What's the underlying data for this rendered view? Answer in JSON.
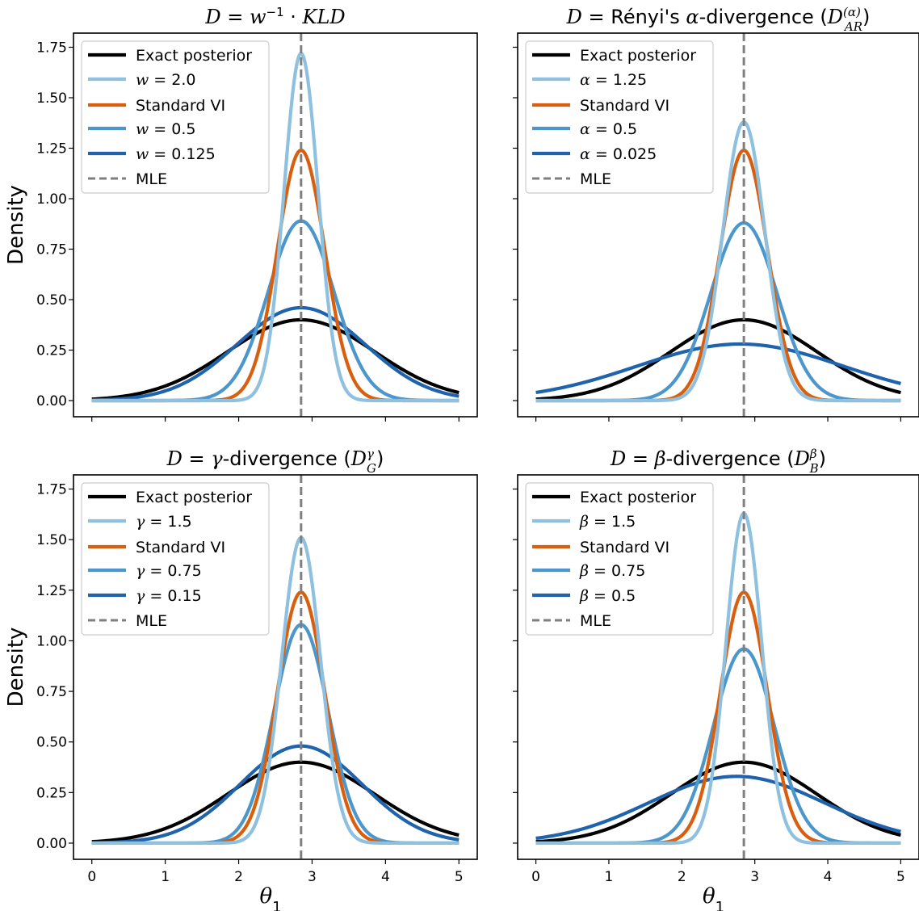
{
  "figure": {
    "ylabel": "Density",
    "xlabel_symbol": "θ",
    "xlabel_subscript": "1"
  },
  "colors": {
    "exact": "#000000",
    "standard_vi": "#d95f0e",
    "param_high": "#8ec1e0",
    "param_mid": "#4b97cc",
    "param_low": "#1f63ad",
    "mle": "#7f7f7f",
    "frame": "#000000"
  },
  "chart_data": [
    {
      "type": "line",
      "panel": "top-left",
      "title_parts": [
        {
          "t": "D",
          "it": true
        },
        {
          "t": " = "
        },
        {
          "t": "w",
          "it": true
        },
        {
          "t": "−1",
          "sup": true
        },
        {
          "t": " · "
        },
        {
          "t": "KLD",
          "it": true
        }
      ],
      "xlim": [
        -0.25,
        5.25
      ],
      "ylim": [
        -0.08,
        1.82
      ],
      "xticks": [
        0,
        1,
        2,
        3,
        4,
        5
      ],
      "show_xticklabels": false,
      "yticks": [
        "0.00",
        "0.25",
        "0.50",
        "0.75",
        "1.00",
        "1.25",
        "1.50",
        "1.75"
      ],
      "show_yticklabels": true,
      "show_ylabel": true,
      "show_xlabel": false,
      "grid": false,
      "legend_position": "upper-left",
      "mle": 2.85,
      "series": [
        {
          "name": "Exact posterior",
          "color_key": "exact",
          "peak": 0.4,
          "mean": 2.85,
          "sd": 1.0,
          "legend_parts": [
            {
              "t": "Exact posterior"
            }
          ]
        },
        {
          "name": "w = 2.0",
          "color_key": "param_high",
          "peak": 1.72,
          "mean": 2.85,
          "sd": 0.232,
          "legend_parts": [
            {
              "t": "w",
              "it": true
            },
            {
              "t": " = 2.0"
            }
          ]
        },
        {
          "name": "Standard VI",
          "color_key": "standard_vi",
          "peak": 1.24,
          "mean": 2.85,
          "sd": 0.322,
          "legend_parts": [
            {
              "t": "Standard VI"
            }
          ]
        },
        {
          "name": "w = 0.5",
          "color_key": "param_mid",
          "peak": 0.89,
          "mean": 2.85,
          "sd": 0.448,
          "legend_parts": [
            {
              "t": "w",
              "it": true
            },
            {
              "t": " = 0.5"
            }
          ]
        },
        {
          "name": "w = 0.125",
          "color_key": "param_low",
          "peak": 0.46,
          "mean": 2.85,
          "sd": 0.87,
          "legend_parts": [
            {
              "t": "w",
              "it": true
            },
            {
              "t": " = 0.125"
            }
          ]
        }
      ],
      "mle_label": "MLE"
    },
    {
      "type": "line",
      "panel": "top-right",
      "title_parts": [
        {
          "t": "D",
          "it": true
        },
        {
          "t": " = Rényi's "
        },
        {
          "t": "α",
          "it": true
        },
        {
          "t": "-divergence ("
        },
        {
          "t": "D",
          "it": true
        },
        {
          "t": "(α)",
          "sup": true,
          "it": true
        },
        {
          "t": "AR",
          "sub": true,
          "it": true,
          "back": 20
        },
        {
          "t": ")"
        }
      ],
      "xlim": [
        -0.25,
        5.25
      ],
      "ylim": [
        -0.08,
        1.82
      ],
      "xticks": [
        0,
        1,
        2,
        3,
        4,
        5
      ],
      "show_xticklabels": false,
      "yticks": [
        "0.00",
        "0.25",
        "0.50",
        "0.75",
        "1.00",
        "1.25",
        "1.50",
        "1.75"
      ],
      "show_yticklabels": false,
      "show_ylabel": false,
      "show_xlabel": false,
      "grid": false,
      "legend_position": "upper-left",
      "mle": 2.85,
      "series": [
        {
          "name": "Exact posterior",
          "color_key": "exact",
          "peak": 0.4,
          "mean": 2.85,
          "sd": 1.0,
          "legend_parts": [
            {
              "t": "Exact posterior"
            }
          ]
        },
        {
          "name": "α = 1.25",
          "color_key": "param_high",
          "peak": 1.38,
          "mean": 2.85,
          "sd": 0.289,
          "legend_parts": [
            {
              "t": "α",
              "it": true
            },
            {
              "t": " = 1.25"
            }
          ]
        },
        {
          "name": "Standard VI",
          "color_key": "standard_vi",
          "peak": 1.24,
          "mean": 2.85,
          "sd": 0.322,
          "legend_parts": [
            {
              "t": "Standard VI"
            }
          ]
        },
        {
          "name": "α = 0.5",
          "color_key": "param_mid",
          "peak": 0.88,
          "mean": 2.85,
          "sd": 0.453,
          "legend_parts": [
            {
              "t": "α",
              "it": true
            },
            {
              "t": " = 0.5"
            }
          ]
        },
        {
          "name": "α = 0.025",
          "color_key": "param_low",
          "peak": 0.28,
          "mean": 2.8,
          "sd": 1.42,
          "legend_parts": [
            {
              "t": "α",
              "it": true
            },
            {
              "t": " = 0.025"
            }
          ]
        }
      ],
      "mle_label": "MLE"
    },
    {
      "type": "line",
      "panel": "bottom-left",
      "title_parts": [
        {
          "t": "D",
          "it": true
        },
        {
          "t": " = "
        },
        {
          "t": "γ",
          "it": true
        },
        {
          "t": "-divergence ("
        },
        {
          "t": "D",
          "it": true
        },
        {
          "t": "γ",
          "sup": true,
          "it": true
        },
        {
          "t": "G",
          "sub": true,
          "it": true,
          "back": 9
        },
        {
          "t": ")"
        }
      ],
      "xlim": [
        -0.25,
        5.25
      ],
      "ylim": [
        -0.08,
        1.82
      ],
      "xticks": [
        0,
        1,
        2,
        3,
        4,
        5
      ],
      "show_xticklabels": true,
      "yticks": [
        "0.00",
        "0.25",
        "0.50",
        "0.75",
        "1.00",
        "1.25",
        "1.50",
        "1.75"
      ],
      "show_yticklabels": true,
      "show_ylabel": true,
      "show_xlabel": true,
      "grid": false,
      "legend_position": "upper-left",
      "mle": 2.85,
      "series": [
        {
          "name": "Exact posterior",
          "color_key": "exact",
          "peak": 0.4,
          "mean": 2.85,
          "sd": 1.0,
          "legend_parts": [
            {
              "t": "Exact posterior"
            }
          ]
        },
        {
          "name": "γ = 1.5",
          "color_key": "param_high",
          "peak": 1.51,
          "mean": 2.85,
          "sd": 0.264,
          "legend_parts": [
            {
              "t": "γ",
              "it": true
            },
            {
              "t": " = 1.5"
            }
          ]
        },
        {
          "name": "Standard VI",
          "color_key": "standard_vi",
          "peak": 1.24,
          "mean": 2.85,
          "sd": 0.322,
          "legend_parts": [
            {
              "t": "Standard VI"
            }
          ]
        },
        {
          "name": "γ = 0.75",
          "color_key": "param_mid",
          "peak": 1.08,
          "mean": 2.85,
          "sd": 0.369,
          "legend_parts": [
            {
              "t": "γ",
              "it": true
            },
            {
              "t": " = 0.75"
            }
          ]
        },
        {
          "name": "γ = 0.15",
          "color_key": "param_low",
          "peak": 0.48,
          "mean": 2.85,
          "sd": 0.83,
          "legend_parts": [
            {
              "t": "γ",
              "it": true
            },
            {
              "t": " = 0.15"
            }
          ]
        }
      ],
      "mle_label": "MLE"
    },
    {
      "type": "line",
      "panel": "bottom-right",
      "title_parts": [
        {
          "t": "D",
          "it": true
        },
        {
          "t": " = "
        },
        {
          "t": "β",
          "it": true
        },
        {
          "t": "-divergence ("
        },
        {
          "t": "D",
          "it": true
        },
        {
          "t": "β",
          "sup": true,
          "it": true
        },
        {
          "t": "B",
          "sub": true,
          "it": true,
          "back": 9
        },
        {
          "t": ")"
        }
      ],
      "xlim": [
        -0.25,
        5.25
      ],
      "ylim": [
        -0.08,
        1.82
      ],
      "xticks": [
        0,
        1,
        2,
        3,
        4,
        5
      ],
      "show_xticklabels": true,
      "yticks": [
        "0.00",
        "0.25",
        "0.50",
        "0.75",
        "1.00",
        "1.25",
        "1.50",
        "1.75"
      ],
      "show_yticklabels": false,
      "show_ylabel": false,
      "show_xlabel": true,
      "grid": false,
      "legend_position": "upper-left",
      "mle": 2.85,
      "series": [
        {
          "name": "Exact posterior",
          "color_key": "exact",
          "peak": 0.4,
          "mean": 2.85,
          "sd": 1.0,
          "legend_parts": [
            {
              "t": "Exact posterior"
            }
          ]
        },
        {
          "name": "β = 1.5",
          "color_key": "param_high",
          "peak": 1.63,
          "mean": 2.85,
          "sd": 0.245,
          "legend_parts": [
            {
              "t": "β",
              "it": true
            },
            {
              "t": " = 1.5"
            }
          ]
        },
        {
          "name": "Standard VI",
          "color_key": "standard_vi",
          "peak": 1.24,
          "mean": 2.85,
          "sd": 0.322,
          "legend_parts": [
            {
              "t": "Standard VI"
            }
          ]
        },
        {
          "name": "β = 0.75",
          "color_key": "param_mid",
          "peak": 0.96,
          "mean": 2.85,
          "sd": 0.416,
          "legend_parts": [
            {
              "t": "β",
              "it": true
            },
            {
              "t": " = 0.75"
            }
          ]
        },
        {
          "name": "β = 0.5",
          "color_key": "param_low",
          "peak": 0.33,
          "mean": 2.75,
          "sd": 1.2,
          "legend_parts": [
            {
              "t": "β",
              "it": true
            },
            {
              "t": " = 0.5"
            }
          ]
        }
      ],
      "mle_label": "MLE"
    }
  ]
}
